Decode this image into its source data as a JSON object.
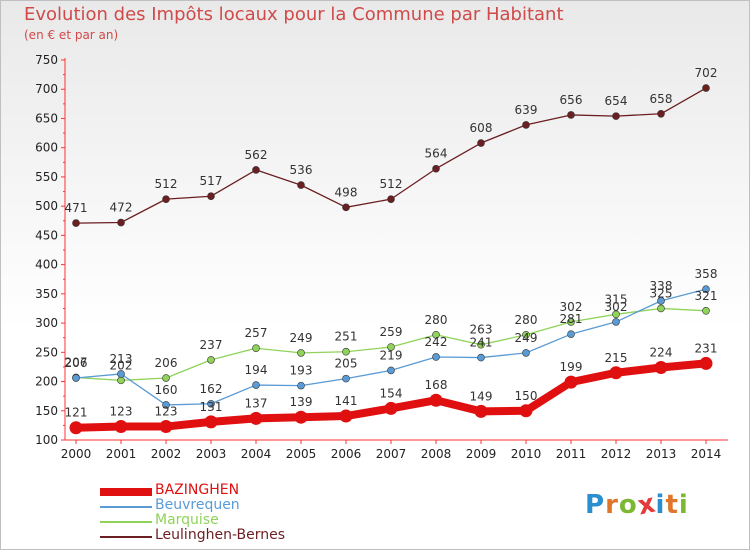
{
  "header": {
    "title": "Evolution des Impôts locaux pour la Commune par Habitant",
    "subtitle": "(en € et par an)"
  },
  "brand": {
    "logo_letters": [
      "P",
      "r",
      "o",
      "x",
      "i",
      "t",
      "i"
    ],
    "logo_colors": [
      "#2a8fd0",
      "#e0762a",
      "#7cb832",
      "#e33b3b",
      "#2a8fd0",
      "#e0762a",
      "#7cb832"
    ]
  },
  "chart_data": {
    "type": "line",
    "title": "Evolution des Impôts locaux pour la Commune par Habitant",
    "subtitle": "(en € et par an)",
    "xlabel": "",
    "ylabel": "",
    "x": [
      "2000",
      "2001",
      "2002",
      "2003",
      "2004",
      "2005",
      "2006",
      "2007",
      "2008",
      "2009",
      "2010",
      "2011",
      "2012",
      "2013",
      "2014"
    ],
    "ylim": [
      100,
      750
    ],
    "yticks": [
      100,
      150,
      200,
      250,
      300,
      350,
      400,
      450,
      500,
      550,
      600,
      650,
      700,
      750
    ],
    "grid": false,
    "legend_position": "bottom-left",
    "series": [
      {
        "name": "BAZINGHEN",
        "color": "#e01010",
        "values": [
          121,
          123,
          123,
          131,
          137,
          139,
          141,
          154,
          168,
          149,
          150,
          199,
          215,
          224,
          231
        ]
      },
      {
        "name": "Beuvrequen",
        "color": "#5a9bd5",
        "values": [
          206,
          213,
          160,
          162,
          194,
          193,
          205,
          219,
          242,
          241,
          249,
          281,
          302,
          338,
          358
        ]
      },
      {
        "name": "Marquise",
        "color": "#8fd35a",
        "values": [
          207,
          202,
          206,
          237,
          257,
          249,
          251,
          259,
          280,
          263,
          280,
          302,
          315,
          325,
          321
        ]
      },
      {
        "name": "Leulinghen-Bernes",
        "color": "#6b1f22",
        "values": [
          471,
          472,
          512,
          517,
          562,
          536,
          498,
          512,
          564,
          608,
          639,
          656,
          654,
          658,
          702
        ]
      }
    ]
  }
}
